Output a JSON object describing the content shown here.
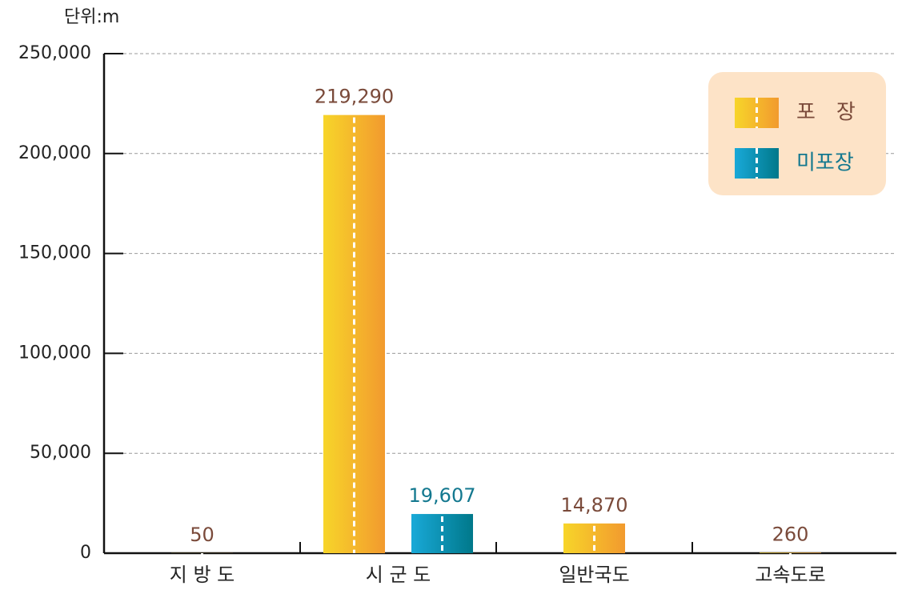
{
  "chart_data": {
    "type": "bar",
    "unit_label": "단위:m",
    "categories": [
      "지 방 도",
      "시 군 도",
      "일반국도",
      "고속도로"
    ],
    "series": [
      {
        "name": "포　장",
        "color": [
          "#f7d52a",
          "#f29a2e"
        ],
        "label_color": "#7a4a3a",
        "values": [
          50,
          219290,
          14870,
          260
        ],
        "value_labels": [
          "50",
          "219,290",
          "14,870",
          "260"
        ]
      },
      {
        "name": "미포장",
        "color": [
          "#19a9d8",
          "#00788a"
        ],
        "label_color": "#13788f",
        "values": [
          null,
          19607,
          null,
          null
        ],
        "value_labels": [
          null,
          "19,607",
          null,
          null
        ]
      }
    ],
    "ylim": [
      0,
      250000
    ],
    "yticks": [
      0,
      {
        "value": 50000,
        "label": "50,000"
      },
      {
        "value": 100000,
        "label": "100,000"
      },
      {
        "value": 150000,
        "label": "150,000"
      },
      {
        "value": 200000,
        "label": "200,000"
      },
      {
        "value": 250000,
        "label": "250,000"
      }
    ],
    "grid": true,
    "legend": "upper right"
  }
}
